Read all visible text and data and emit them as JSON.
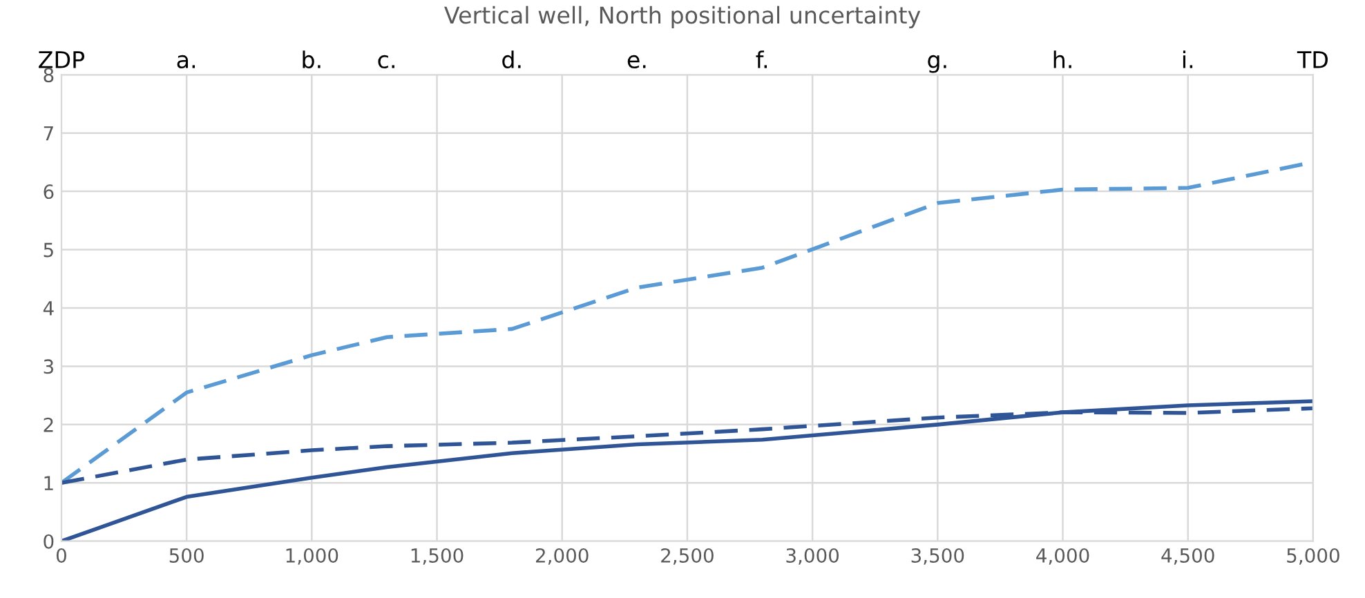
{
  "chart_data": {
    "type": "line",
    "title": "Vertical well, North positional uncertainty",
    "x": [
      0,
      500,
      1000,
      1300,
      1800,
      2300,
      2800,
      3500,
      4000,
      4500,
      5000
    ],
    "series": [
      {
        "color": "#5b9bd5",
        "line_style": "dashed",
        "values": [
          1,
          2.55,
          3.19,
          3.5,
          3.64,
          4.35,
          4.69,
          5.8,
          6.03,
          6.06,
          6.5
        ]
      },
      {
        "color": "#2f5597",
        "line_style": "dashed",
        "values": [
          1,
          1.4,
          1.56,
          1.63,
          1.69,
          1.8,
          1.92,
          2.12,
          2.21,
          2.2,
          2.28
        ]
      },
      {
        "color": "#2f5597",
        "line_style": "solid",
        "values": [
          0,
          0.76,
          1.09,
          1.27,
          1.51,
          1.66,
          1.74,
          2.0,
          2.21,
          2.33,
          2.4
        ]
      }
    ],
    "xlim": [
      0,
      5000
    ],
    "ylim": [
      0,
      8
    ],
    "xticks": [
      {
        "value": 0,
        "label": "0"
      },
      {
        "value": 500,
        "label": "500"
      },
      {
        "value": 1000,
        "label": "1,000"
      },
      {
        "value": 1500,
        "label": "1,500"
      },
      {
        "value": 2000,
        "label": "2,000"
      },
      {
        "value": 2500,
        "label": "2,500"
      },
      {
        "value": 3000,
        "label": "3,000"
      },
      {
        "value": 3500,
        "label": "3,500"
      },
      {
        "value": 4000,
        "label": "4,000"
      },
      {
        "value": 4500,
        "label": "4,500"
      },
      {
        "value": 5000,
        "label": "5,000"
      }
    ],
    "yticks": [
      0,
      1,
      2,
      3,
      4,
      5,
      6,
      7,
      8
    ],
    "annotations": [
      "ZDP",
      "a.",
      "b.",
      "c.",
      "d.",
      "e.",
      "f.",
      "g.",
      "h.",
      "i.",
      "TD"
    ],
    "grid": true,
    "legend": false,
    "marker": "none"
  }
}
